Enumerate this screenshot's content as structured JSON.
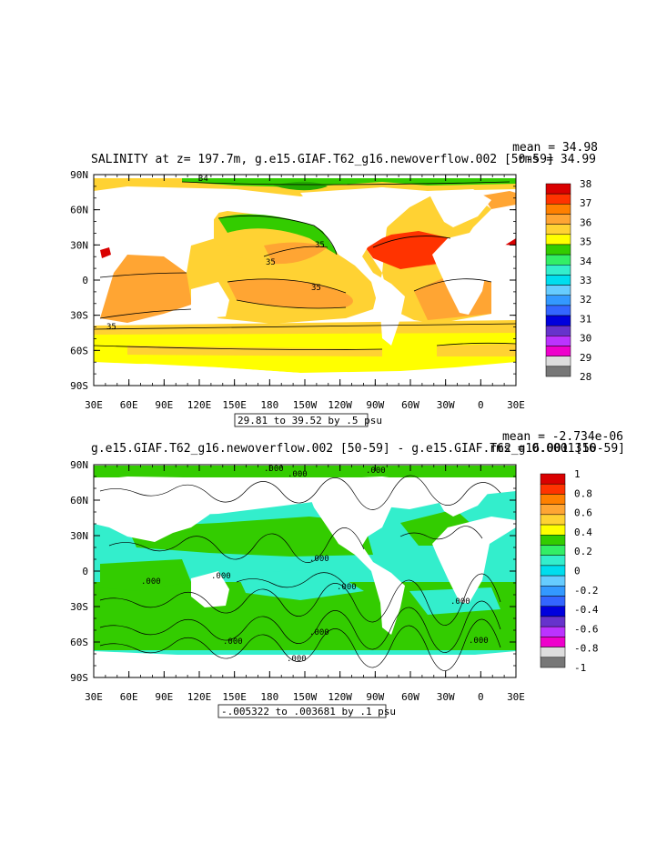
{
  "panels": [
    {
      "title": "SALINITY at z= 197.7m, g.e15.GIAF.T62_g16.newoverflow.002 [50-59]",
      "mean_text": "mean = 34.98",
      "rms_text": "rms = 34.99",
      "range_note": "29.81 to 39.52 by .5 psu",
      "colorbar": {
        "labels": [
          "38",
          "37",
          "36",
          "35",
          "34",
          "33",
          "32",
          "31",
          "30",
          "29",
          "28"
        ],
        "colors": [
          "#d90000",
          "#ff3300",
          "#ff8000",
          "#ffa533",
          "#ffd233",
          "#ffff00",
          "#33cc00",
          "#33ee66",
          "#33eecc",
          "#00ddee",
          "#66ccff",
          "#3399ff",
          "#3366ff",
          "#0000dd",
          "#6633cc",
          "#bb33ff",
          "#ee00cc",
          "#dddddd",
          "#777777"
        ]
      },
      "contour_labels": [
        "34",
        "35",
        "35",
        "35",
        "35"
      ]
    },
    {
      "title": "g.e15.GIAF.T62_g16.newoverflow.002 [50-59] - g.e15.GIAF.T62_g16.001 [50-59]",
      "mean_text": "mean = -2.734e-06",
      "rms_text": "rms = 0.0001316",
      "range_note": "-.005322 to .003681 by .1 psu",
      "colorbar": {
        "labels": [
          "1",
          "0.8",
          "0.6",
          "0.4",
          "0.2",
          "0",
          "-0.2",
          "-0.4",
          "-0.6",
          "-0.8",
          "-1"
        ],
        "colors": [
          "#d90000",
          "#ff3300",
          "#ff8000",
          "#ffa533",
          "#ffd233",
          "#ffff00",
          "#33cc00",
          "#33ee66",
          "#33eecc",
          "#00ddee",
          "#66ccff",
          "#3399ff",
          "#3366ff",
          "#0000dd",
          "#6633cc",
          "#bb33ff",
          "#ee00cc",
          "#dddddd",
          "#777777"
        ]
      },
      "contour_labels": [
        ".000",
        ".000",
        ".000",
        ".000",
        ".000",
        ".000",
        ".000",
        ".000",
        ".000",
        ".000",
        ".000",
        ".000"
      ]
    }
  ],
  "axes": {
    "lat_labels": [
      "90N",
      "60N",
      "30N",
      "0",
      "30S",
      "60S",
      "90S"
    ],
    "lon_labels": [
      "30E",
      "60E",
      "90E",
      "120E",
      "150E",
      "180",
      "150W",
      "120W",
      "90W",
      "60W",
      "30W",
      "0",
      "30E"
    ]
  }
}
